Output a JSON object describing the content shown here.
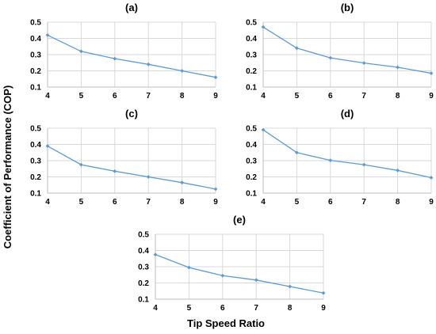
{
  "figure": {
    "ylabel": "Coefficient of Performance (COP)",
    "xlabel": "Tip Speed Ratio"
  },
  "chart_data": [
    {
      "type": "line",
      "title": "(a)",
      "x": [
        4,
        5,
        6,
        7,
        8,
        9
      ],
      "y": [
        0.42,
        0.32,
        0.275,
        0.24,
        0.2,
        0.16
      ],
      "xlim": [
        4,
        9
      ],
      "ylim": [
        0.1,
        0.5
      ],
      "yticks": [
        "0.1",
        "0.2",
        "0.3",
        "0.4",
        "0.5"
      ],
      "xticks": [
        "4",
        "5",
        "6",
        "7",
        "8",
        "9"
      ],
      "grid": true,
      "color": "#5B9BD5"
    },
    {
      "type": "line",
      "title": "(b)",
      "x": [
        4,
        5,
        6,
        7,
        8,
        9
      ],
      "y": [
        0.47,
        0.34,
        0.28,
        0.248,
        0.222,
        0.185
      ],
      "xlim": [
        4,
        9
      ],
      "ylim": [
        0.1,
        0.5
      ],
      "yticks": [
        "0.1",
        "0.2",
        "0.3",
        "0.4",
        "0.5"
      ],
      "xticks": [
        "4",
        "5",
        "6",
        "7",
        "8",
        "9"
      ],
      "grid": true,
      "color": "#5B9BD5"
    },
    {
      "type": "line",
      "title": "(c)",
      "x": [
        4,
        5,
        6,
        7,
        8,
        9
      ],
      "y": [
        0.39,
        0.275,
        0.235,
        0.2,
        0.165,
        0.125
      ],
      "xlim": [
        4,
        9
      ],
      "ylim": [
        0.1,
        0.5
      ],
      "yticks": [
        "0.1",
        "0.2",
        "0.3",
        "0.4",
        "0.5"
      ],
      "xticks": [
        "4",
        "5",
        "6",
        "7",
        "8",
        "9"
      ],
      "grid": true,
      "color": "#5B9BD5"
    },
    {
      "type": "line",
      "title": "(d)",
      "x": [
        4,
        5,
        6,
        7,
        8,
        9
      ],
      "y": [
        0.49,
        0.35,
        0.302,
        0.275,
        0.24,
        0.195
      ],
      "xlim": [
        4,
        9
      ],
      "ylim": [
        0.1,
        0.5
      ],
      "yticks": [
        "0.1",
        "0.2",
        "0.3",
        "0.4",
        "0.5"
      ],
      "xticks": [
        "4",
        "5",
        "6",
        "7",
        "8",
        "9"
      ],
      "grid": true,
      "color": "#5B9BD5"
    },
    {
      "type": "line",
      "title": "(e)",
      "x": [
        4,
        5,
        6,
        7,
        8,
        9
      ],
      "y": [
        0.375,
        0.295,
        0.245,
        0.218,
        0.178,
        0.138
      ],
      "xlim": [
        4,
        9
      ],
      "ylim": [
        0.1,
        0.5
      ],
      "yticks": [
        "0.1",
        "0.2",
        "0.3",
        "0.4",
        "0.5"
      ],
      "xticks": [
        "4",
        "5",
        "6",
        "7",
        "8",
        "9"
      ],
      "grid": true,
      "color": "#5B9BD5"
    }
  ]
}
